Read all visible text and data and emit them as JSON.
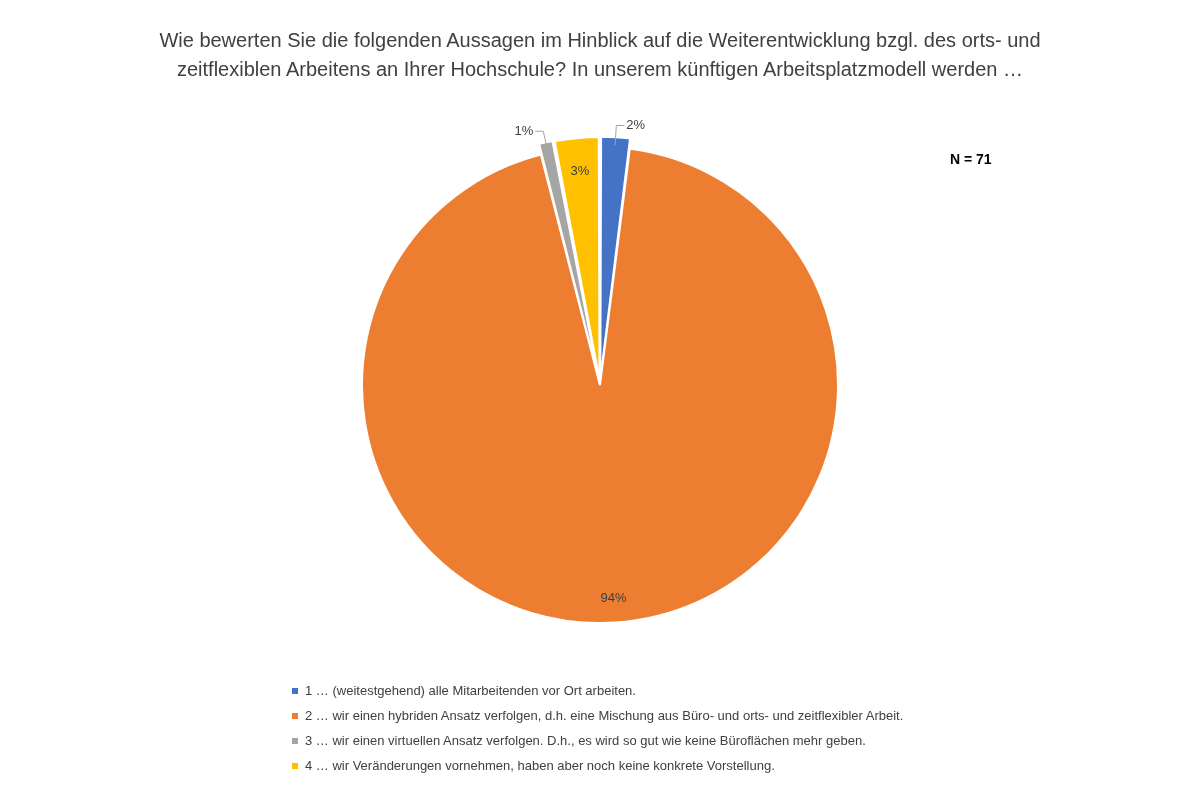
{
  "chart_data": {
    "type": "pie",
    "title": "Wie bewerten Sie die folgenden Aussagen im Hinblick auf die Weiterentwicklung bzgl. des orts- und zeitflexiblen Arbeitens an Ihrer Hochschule? In unserem künftigen Arbeitsplatzmodell werden …",
    "categories": [
      "1 … (weitestgehend) alle Mitarbeitenden vor Ort arbeiten.",
      "2 … wir einen hybriden Ansatz verfolgen, d.h. eine Mischung aus Büro- und orts- und zeitflexibler Arbeit.",
      "3 … wir einen virtuellen Ansatz verfolgen. D.h., es wird so gut wie keine Büroflächen mehr geben.",
      "4 … wir Veränderungen vornehmen, haben aber noch keine konkrete Vorstellung."
    ],
    "values": [
      2,
      94,
      1,
      3
    ],
    "colors": [
      "#4472c4",
      "#ed7d31",
      "#a5a5a5",
      "#ffc000"
    ],
    "value_labels": [
      "2%",
      "94%",
      "1%",
      "3%"
    ],
    "legend": "bottom",
    "annotations": [
      "N = 71"
    ]
  }
}
